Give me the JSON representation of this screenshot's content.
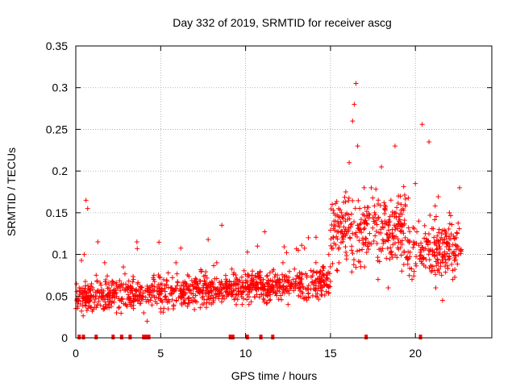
{
  "chart_data": {
    "type": "scatter",
    "title": "Day 332 of 2019, SRMTID for receiver ascg",
    "xlabel": "GPS time / hours",
    "ylabel": "SRMTID / TECUs",
    "xlim": [
      0,
      24.5
    ],
    "ylim": [
      0,
      0.35
    ],
    "x_ticks": [
      0,
      5,
      10,
      15,
      20
    ],
    "x_tick_labels": [
      "0",
      "5",
      "10",
      "15",
      "20"
    ],
    "y_ticks": [
      0,
      0.05,
      0.1,
      0.15,
      0.2,
      0.25,
      0.3,
      0.35
    ],
    "y_tick_labels": [
      "0",
      "0.05",
      "0.1",
      "0.15",
      "0.2",
      "0.25",
      "0.3",
      "0.35"
    ],
    "grid": true,
    "marker": "+",
    "color": "#ff0000",
    "series": [
      {
        "name": "SRMTID",
        "x": [
          0.0,
          0.2,
          0.4,
          0.5,
          0.6,
          0.7,
          0.8,
          1.0,
          1.2,
          1.3,
          1.5,
          1.7,
          1.9,
          2.0,
          2.2,
          2.4,
          2.6,
          2.8,
          3.0,
          3.2,
          3.4,
          3.6,
          3.8,
          4.0,
          4.2,
          4.4,
          4.6,
          4.8,
          5.0,
          5.3,
          5.6,
          5.9,
          6.2,
          6.5,
          6.8,
          7.1,
          7.4,
          7.7,
          8.0,
          8.3,
          8.6,
          8.9,
          9.2,
          9.5,
          9.8,
          10.1,
          10.4,
          10.7,
          11.0,
          11.3,
          11.6,
          11.9,
          12.2,
          12.5,
          12.8,
          13.1,
          13.4,
          13.7,
          14.0,
          14.3,
          14.6,
          14.9,
          15.1,
          15.3,
          15.5,
          15.7,
          15.9,
          16.1,
          16.3,
          16.4,
          16.5,
          16.6,
          16.8,
          17.0,
          17.2,
          17.4,
          17.6,
          17.8,
          18.0,
          18.2,
          18.4,
          18.6,
          18.8,
          19.0,
          19.2,
          19.4,
          19.6,
          19.8,
          20.0,
          20.2,
          20.4,
          20.6,
          20.8,
          21.0,
          21.2,
          21.4,
          21.6,
          21.8,
          22.0,
          22.2,
          22.4,
          22.6
        ],
        "y": [
          0.035,
          0.06,
          0.055,
          0.1,
          0.165,
          0.155,
          0.045,
          0.06,
          0.075,
          0.115,
          0.05,
          0.09,
          0.04,
          0.055,
          0.065,
          0.03,
          0.045,
          0.085,
          0.06,
          0.04,
          0.07,
          0.115,
          0.05,
          0.03,
          0.02,
          0.045,
          0.075,
          0.06,
          0.035,
          0.05,
          0.06,
          0.09,
          0.05,
          0.065,
          0.045,
          0.07,
          0.08,
          0.06,
          0.055,
          0.09,
          0.135,
          0.065,
          0.05,
          0.07,
          0.04,
          0.06,
          0.08,
          0.11,
          0.065,
          0.05,
          0.08,
          0.06,
          0.09,
          0.04,
          0.07,
          0.105,
          0.06,
          0.12,
          0.08,
          0.065,
          0.075,
          0.1,
          0.16,
          0.14,
          0.09,
          0.12,
          0.175,
          0.21,
          0.26,
          0.28,
          0.305,
          0.23,
          0.13,
          0.085,
          0.11,
          0.18,
          0.15,
          0.07,
          0.205,
          0.14,
          0.06,
          0.1,
          0.23,
          0.17,
          0.08,
          0.12,
          0.095,
          0.07,
          0.185,
          0.14,
          0.256,
          0.085,
          0.235,
          0.1,
          0.06,
          0.13,
          0.045,
          0.09,
          0.15,
          0.07,
          0.12,
          0.18
        ]
      }
    ],
    "noise_points": 1500,
    "annotations": "Dense red '+' markers scattered between 0.02 and 0.12 TECU from 0 to 15 h, rising to 0.05-0.3 TECU from 15 to 22.6 h; small red square markers sit on the x-axis."
  }
}
